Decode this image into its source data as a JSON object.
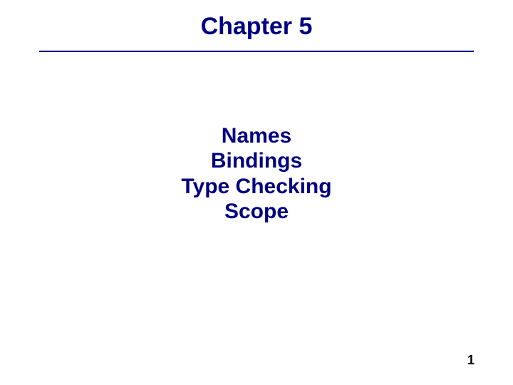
{
  "title": {
    "text": "Chapter 5",
    "color": "#000080",
    "fontsize": 34
  },
  "divider": {
    "color": "#000080"
  },
  "topics": {
    "lines": [
      "Names",
      "Bindings",
      "Type Checking",
      "Scope"
    ],
    "color": "#000080",
    "fontsize": 30
  },
  "pageNumber": {
    "text": "1",
    "color": "#000000",
    "fontsize": 18
  },
  "background_color": "#ffffff"
}
